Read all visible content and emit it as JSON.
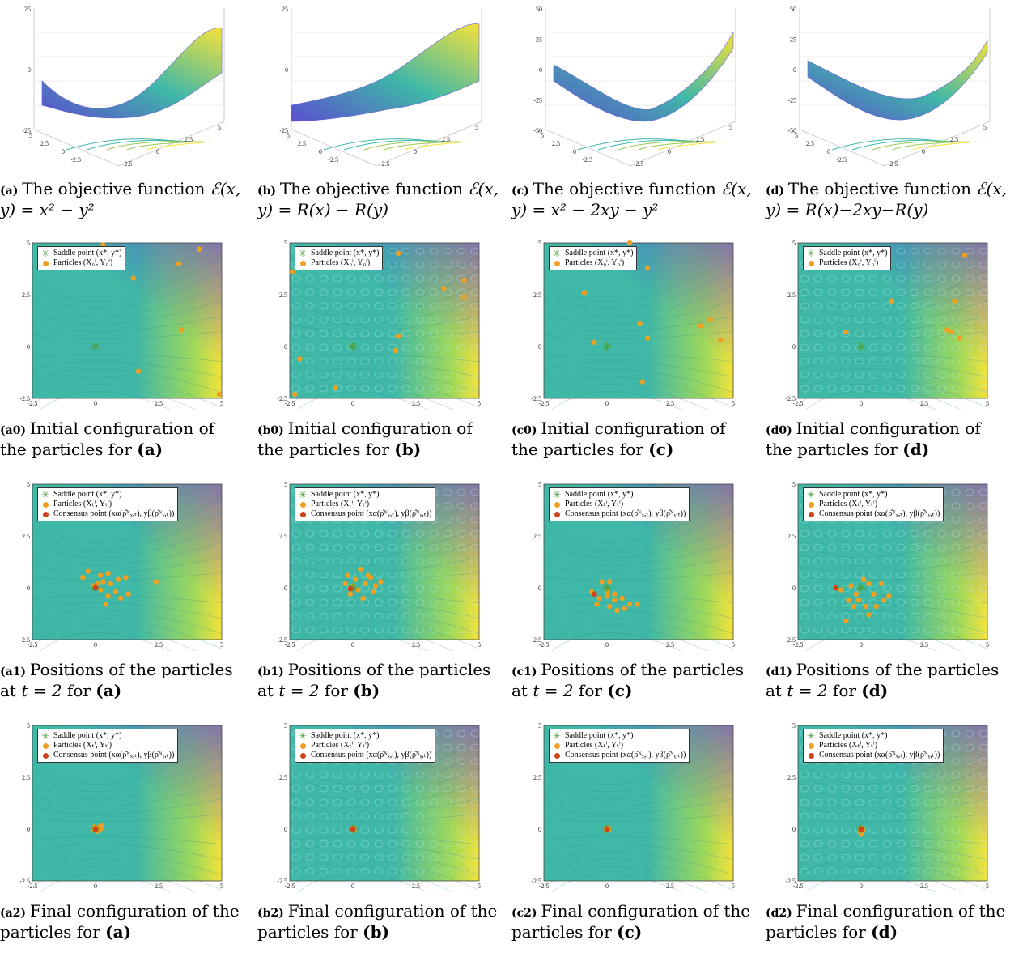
{
  "axes": {
    "surface_z_ticks_ac": [
      "25",
      "0",
      "-25"
    ],
    "surface_z_ticks_cd": [
      "50",
      "25",
      "0",
      "-25",
      "-50"
    ],
    "surface_xy_ticks": [
      "5",
      "2.5",
      "0",
      "-2.5"
    ],
    "contour_y_ticks": [
      "5",
      "2.5",
      "0",
      "-2.5"
    ],
    "contour_x_ticks": [
      "-2.5",
      "0",
      "2.5",
      "5"
    ]
  },
  "legend": {
    "saddle": "Saddle point (x*, y*)",
    "particles_initial": "Particles (X₀ⁱ, Y₀ⁱ)",
    "particles_t": "Particles (Xₜⁱ, Yₜⁱ)",
    "consensus": "Consensus point (xα(ρ̂ᴺₓ,ₜ), yβ(ρ̂ᴺᵧ,ₜ))"
  },
  "colors": {
    "saddle": "#4aa23a",
    "particle": "#f0a020",
    "consensus": "#d0441c",
    "low": "#5a4fcf",
    "mid": "#3fb8a8",
    "high": "#f5e23a"
  },
  "rows": [
    {
      "id": "surface",
      "cells": [
        {
          "tag": "(a)",
          "text": "The objective function",
          "math": "ℰ(x, y) = x² − y²"
        },
        {
          "tag": "(b)",
          "text": "The objective function",
          "math": "ℰ(x, y) = R(x) − R(y)"
        },
        {
          "tag": "(c)",
          "text": "The objective function",
          "math": "ℰ(x, y) = x² − 2xy − y²"
        },
        {
          "tag": "(d)",
          "text": "The objective function",
          "math": "ℰ(x, y) = R(x)−2xy−R(y)"
        }
      ]
    },
    {
      "id": "initial",
      "cells": [
        {
          "tag": "(a0)",
          "text": "Initial configuration of the particles for",
          "ref": "(a)"
        },
        {
          "tag": "(b0)",
          "text": "Initial configuration of the particles for",
          "ref": "(b)"
        },
        {
          "tag": "(c0)",
          "text": "Initial configuration of the particles for",
          "ref": "(c)"
        },
        {
          "tag": "(d0)",
          "text": "Initial configuration of the particles for",
          "ref": "(d)"
        }
      ]
    },
    {
      "id": "intermediate",
      "cells": [
        {
          "tag": "(a1)",
          "text": "Positions of the particles at",
          "math": "t = 2",
          "after": "for",
          "ref": "(a)"
        },
        {
          "tag": "(b1)",
          "text": "Positions of the particles at",
          "math": "t = 2",
          "after": "for",
          "ref": "(b)"
        },
        {
          "tag": "(c1)",
          "text": "Positions of the particles at",
          "math": "t = 2",
          "after": "for",
          "ref": "(c)"
        },
        {
          "tag": "(d1)",
          "text": "Positions of the particles at",
          "math": "t = 2",
          "after": "for",
          "ref": "(d)"
        }
      ]
    },
    {
      "id": "final",
      "cells": [
        {
          "tag": "(a2)",
          "text": "Final configuration of the particles for",
          "ref": "(a)"
        },
        {
          "tag": "(b2)",
          "text": "Final configuration of the particles for",
          "ref": "(b)"
        },
        {
          "tag": "(c2)",
          "text": "Final configuration of the particles for",
          "ref": "(c)"
        },
        {
          "tag": "(d2)",
          "text": "Final configuration of the particles for",
          "ref": "(d)"
        }
      ]
    }
  ],
  "particles": {
    "a0": [
      [
        0.3,
        4.9
      ],
      [
        1.5,
        3.3
      ],
      [
        3.3,
        4.0
      ],
      [
        4.1,
        4.7
      ],
      [
        3.4,
        0.8
      ],
      [
        1.7,
        -1.2
      ],
      [
        4.9,
        -2.3
      ]
    ],
    "b0": [
      [
        -2.4,
        3.6
      ],
      [
        1.8,
        4.5
      ],
      [
        3.6,
        2.8
      ],
      [
        4.4,
        3.2
      ],
      [
        4.4,
        2.4
      ],
      [
        1.8,
        0.5
      ],
      [
        1.7,
        -0.2
      ],
      [
        -2.1,
        -0.6
      ],
      [
        -0.7,
        -2.0
      ],
      [
        -2.3,
        -2.3
      ]
    ],
    "c0": [
      [
        0.9,
        5.0
      ],
      [
        -0.9,
        2.6
      ],
      [
        1.6,
        3.8
      ],
      [
        -0.5,
        0.2
      ],
      [
        1.3,
        1.1
      ],
      [
        1.6,
        0.4
      ],
      [
        3.7,
        1.0
      ],
      [
        4.1,
        1.3
      ],
      [
        4.5,
        0.3
      ],
      [
        1.4,
        -1.7
      ]
    ],
    "d0": [
      [
        1.2,
        2.2
      ],
      [
        3.7,
        2.2
      ],
      [
        4.1,
        4.4
      ],
      [
        -0.6,
        0.7
      ],
      [
        3.4,
        0.8
      ],
      [
        3.6,
        0.7
      ],
      [
        3.9,
        0.4
      ]
    ],
    "a1": [
      [
        -0.5,
        0.5
      ],
      [
        -0.3,
        0.8
      ],
      [
        0.2,
        0.6
      ],
      [
        0.5,
        0.7
      ],
      [
        0.3,
        0.3
      ],
      [
        0.6,
        0.2
      ],
      [
        0.9,
        0.4
      ],
      [
        1.2,
        0.5
      ],
      [
        2.4,
        0.3
      ],
      [
        0.2,
        -0.1
      ],
      [
        0.5,
        -0.4
      ],
      [
        0.8,
        -0.2
      ],
      [
        1.0,
        -0.5
      ],
      [
        0.4,
        -0.8
      ],
      [
        1.3,
        -0.3
      ],
      [
        -0.1,
        0.1
      ],
      [
        0.1,
        0.2
      ]
    ],
    "b1": [
      [
        -0.2,
        0.6
      ],
      [
        0.1,
        0.4
      ],
      [
        0.3,
        0.9
      ],
      [
        0.5,
        0.2
      ],
      [
        0.7,
        0.5
      ],
      [
        0.9,
        0.1
      ],
      [
        0.2,
        -0.1
      ],
      [
        -0.1,
        -0.3
      ],
      [
        0.4,
        -0.5
      ],
      [
        0.6,
        0.6
      ],
      [
        0.8,
        -0.2
      ],
      [
        1.1,
        0.3
      ],
      [
        -0.3,
        0.2
      ],
      [
        0.0,
        0.1
      ]
    ],
    "c1": [
      [
        -0.2,
        0.3
      ],
      [
        0.1,
        0.3
      ],
      [
        -0.6,
        -0.2
      ],
      [
        -0.3,
        -0.5
      ],
      [
        0.0,
        -0.4
      ],
      [
        0.3,
        -0.6
      ],
      [
        0.6,
        -0.5
      ],
      [
        0.9,
        -0.8
      ],
      [
        1.2,
        -0.8
      ],
      [
        -0.4,
        -0.8
      ],
      [
        0.1,
        -0.9
      ],
      [
        0.4,
        -1.1
      ],
      [
        0.7,
        -1.0
      ],
      [
        0.0,
        -0.2
      ],
      [
        0.3,
        -0.3
      ]
    ],
    "d1": [
      [
        -0.8,
        -0.1
      ],
      [
        -0.4,
        0.1
      ],
      [
        -0.2,
        -0.3
      ],
      [
        0.1,
        0.4
      ],
      [
        0.3,
        0.2
      ],
      [
        0.5,
        -0.3
      ],
      [
        0.8,
        0.2
      ],
      [
        1.1,
        -0.4
      ],
      [
        -0.5,
        -0.6
      ],
      [
        -0.1,
        -0.6
      ],
      [
        0.2,
        -0.9
      ],
      [
        0.6,
        -0.9
      ],
      [
        0.9,
        -0.6
      ],
      [
        -0.6,
        -1.6
      ],
      [
        0.3,
        -1.3
      ],
      [
        -0.3,
        -0.9
      ]
    ],
    "a2": [
      [
        0.05,
        0.05
      ],
      [
        0.15,
        0.1
      ],
      [
        -0.1,
        -0.05
      ],
      [
        0.2,
        0.0
      ],
      [
        0.1,
        -0.1
      ],
      [
        0.25,
        0.15
      ],
      [
        -0.05,
        0.1
      ]
    ],
    "b2": [
      [
        0.0,
        0.05
      ],
      [
        0.05,
        -0.05
      ],
      [
        -0.05,
        0.0
      ],
      [
        0.05,
        0.05
      ]
    ],
    "c2": [
      [
        -0.05,
        0.0
      ],
      [
        0.05,
        0.05
      ],
      [
        0.0,
        -0.05
      ],
      [
        0.08,
        0.0
      ]
    ],
    "d2": [
      [
        0.0,
        0.05
      ],
      [
        0.05,
        -0.05
      ],
      [
        -0.05,
        -0.1
      ],
      [
        0.0,
        -0.25
      ],
      [
        0.1,
        0.0
      ]
    ]
  },
  "consensus": {
    "a1": [
      0.0,
      0.0
    ],
    "b1": [
      -0.1,
      -0.05
    ],
    "c1": [
      -0.5,
      -0.3
    ],
    "d1": [
      -1.0,
      0.0
    ],
    "a2": [
      0.0,
      0.0
    ],
    "b2": [
      0.0,
      0.0
    ],
    "c2": [
      0.0,
      0.0
    ],
    "d2": [
      0.0,
      0.0
    ]
  },
  "saddle": [
    0,
    0
  ]
}
